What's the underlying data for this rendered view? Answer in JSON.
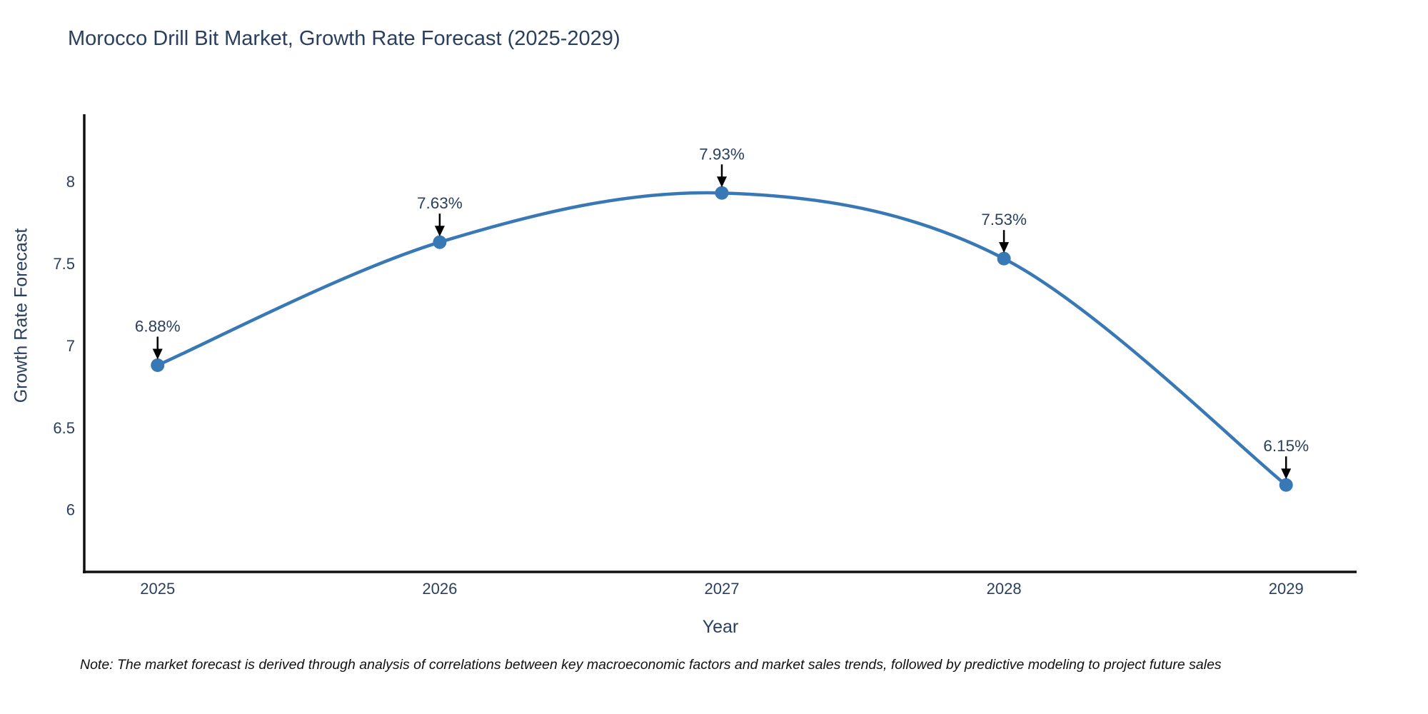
{
  "note": "Note: The market forecast is derived through analysis of correlations between key macroeconomic factors and market sales trends, followed by predictive modeling to project future sales",
  "chart_data": {
    "type": "line",
    "title": "Morocco Drill Bit Market, Growth Rate Forecast (2025-2029)",
    "xlabel": "Year",
    "ylabel": "Growth Rate Forecast",
    "x": [
      2025,
      2026,
      2027,
      2028,
      2029
    ],
    "y": [
      6.88,
      7.63,
      7.93,
      7.53,
      6.15
    ],
    "point_labels": [
      "6.88%",
      "7.63%",
      "7.93%",
      "7.53%",
      "6.15%"
    ],
    "xticks": [
      2025,
      2026,
      2027,
      2028,
      2029
    ],
    "xtick_labels": [
      "2025",
      "2026",
      "2027",
      "2028",
      "2029"
    ],
    "yticks": [
      6,
      6.5,
      7,
      7.5,
      8
    ],
    "ytick_labels": [
      "6",
      "6.5",
      "7",
      "7.5",
      "8"
    ],
    "xlim": [
      2024.74,
      2029.25
    ],
    "ylim": [
      5.62,
      8.41
    ],
    "line_shape": "spline",
    "grid": false,
    "legend": "none",
    "colors": {
      "line": "#3878b4",
      "marker": "#3878b4",
      "arrow": "#000000",
      "text": "#2a3f5f",
      "axis": "#101010",
      "background": "#ffffff"
    }
  }
}
